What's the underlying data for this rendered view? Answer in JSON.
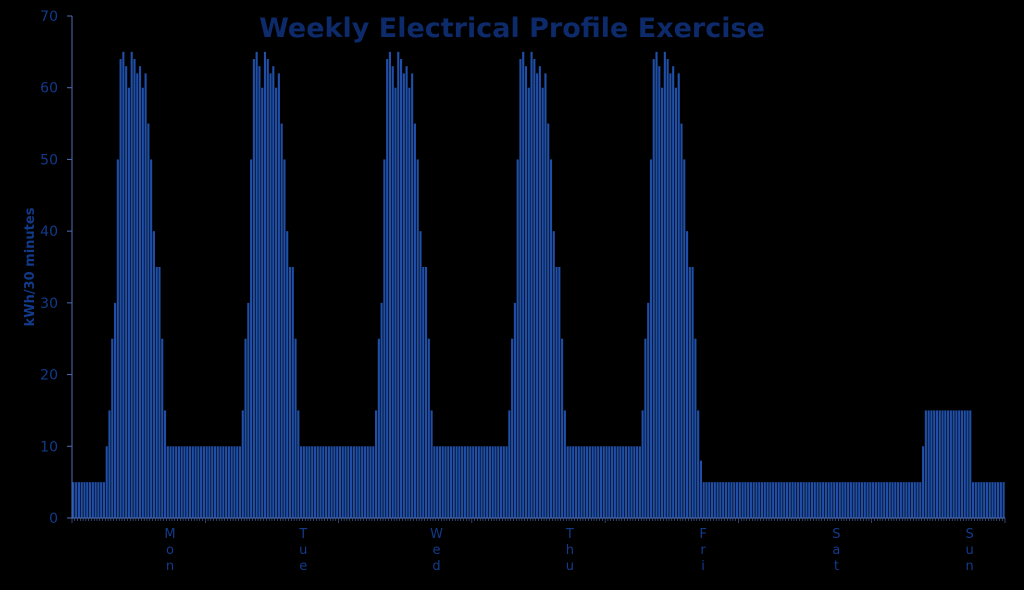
{
  "chart_data": {
    "type": "bar",
    "title": "Weekly Electrical Profile Exercise",
    "xlabel": "",
    "ylabel": "kWh/30 minutes",
    "ylim": [
      0,
      70
    ],
    "yticks": [
      0,
      10,
      20,
      30,
      40,
      50,
      60,
      70
    ],
    "categories": [
      "Mon",
      "Tue",
      "Wed",
      "Thu",
      "Fri",
      "Sat",
      "Sun"
    ],
    "interval": "30 minutes",
    "grid": false,
    "legend": "none",
    "bar_color": "#1f4fa8",
    "axis_color": "#4f6fb5",
    "text_color": "#123a8a",
    "series": [
      {
        "values": {
          "Mon": [
            5,
            5,
            5,
            5,
            5,
            5,
            5,
            5,
            5,
            5,
            5,
            5,
            10,
            15,
            25,
            30,
            50,
            64,
            65,
            63,
            60,
            65,
            64,
            62,
            63,
            60,
            62,
            55,
            50,
            40,
            35,
            35,
            25,
            15,
            10,
            10,
            10,
            10,
            10,
            10,
            10,
            10,
            10,
            10,
            10,
            10,
            10,
            10
          ],
          "Tue": [
            10,
            10,
            10,
            10,
            10,
            10,
            10,
            10,
            10,
            10,
            10,
            10,
            10,
            15,
            25,
            30,
            50,
            64,
            65,
            63,
            60,
            65,
            64,
            62,
            63,
            60,
            62,
            55,
            50,
            40,
            35,
            35,
            25,
            15,
            10,
            10,
            10,
            10,
            10,
            10,
            10,
            10,
            10,
            10,
            10,
            10,
            10,
            10
          ],
          "Wed": [
            10,
            10,
            10,
            10,
            10,
            10,
            10,
            10,
            10,
            10,
            10,
            10,
            10,
            15,
            25,
            30,
            50,
            64,
            65,
            63,
            60,
            65,
            64,
            62,
            63,
            60,
            62,
            55,
            50,
            40,
            35,
            35,
            25,
            15,
            10,
            10,
            10,
            10,
            10,
            10,
            10,
            10,
            10,
            10,
            10,
            10,
            10,
            10
          ],
          "Thu": [
            10,
            10,
            10,
            10,
            10,
            10,
            10,
            10,
            10,
            10,
            10,
            10,
            10,
            15,
            25,
            30,
            50,
            64,
            65,
            63,
            60,
            65,
            64,
            62,
            63,
            60,
            62,
            55,
            50,
            40,
            35,
            35,
            25,
            15,
            10,
            10,
            10,
            10,
            10,
            10,
            10,
            10,
            10,
            10,
            10,
            10,
            10,
            10
          ],
          "Fri": [
            10,
            10,
            10,
            10,
            10,
            10,
            10,
            10,
            10,
            10,
            10,
            10,
            10,
            15,
            25,
            30,
            50,
            64,
            65,
            63,
            60,
            65,
            64,
            62,
            63,
            60,
            62,
            55,
            50,
            40,
            35,
            35,
            25,
            15,
            8,
            5,
            5,
            5,
            5,
            5,
            5,
            5,
            5,
            5,
            5,
            5,
            5,
            5
          ],
          "Sat": [
            5,
            5,
            5,
            5,
            5,
            5,
            5,
            5,
            5,
            5,
            5,
            5,
            5,
            5,
            5,
            5,
            5,
            5,
            5,
            5,
            5,
            5,
            5,
            5,
            5,
            5,
            5,
            5,
            5,
            5,
            5,
            5,
            5,
            5,
            5,
            5,
            5,
            5,
            5,
            5,
            5,
            5,
            5,
            5,
            5,
            5,
            5,
            5
          ],
          "Sun": [
            5,
            5,
            5,
            5,
            5,
            5,
            5,
            5,
            5,
            5,
            5,
            5,
            5,
            5,
            5,
            5,
            5,
            5,
            10,
            15,
            15,
            15,
            15,
            15,
            15,
            15,
            15,
            15,
            15,
            15,
            15,
            15,
            15,
            15,
            15,
            15,
            5,
            5,
            5,
            5,
            5,
            5,
            5,
            5,
            5,
            5,
            5,
            5
          ]
        }
      }
    ]
  }
}
